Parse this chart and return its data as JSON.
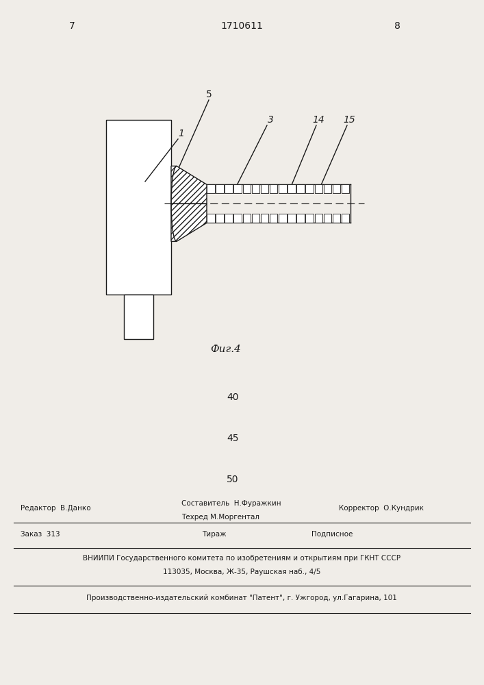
{
  "bg_color": "#f0ede8",
  "line_color": "#1a1a1a",
  "page_number_left": "7",
  "page_number_right": "8",
  "patent_number": "1710611",
  "fig_caption": "Фиг.4",
  "label_5": "5",
  "label_1": "1",
  "label_3": "3",
  "label_14": "14",
  "label_15": "15",
  "num_40": "40",
  "num_45": "45",
  "num_50": "50",
  "footer_editor": "Редактор  В.Данко",
  "footer_author": "Составитель  Н.Фуражкин",
  "footer_techred": "Техред М.Моргентал",
  "footer_corrector": "Корректор  О.Кундрик",
  "footer_order": "Заказ  313",
  "footer_tirazh": "Тираж",
  "footer_podpisnoe": "Подписное",
  "footer_vniipи": "ВНИИПИ Государственного комитета по изобретениям и открытиям при ГКНТ СССР",
  "footer_addr": "113035, Москва, Ж-35, Раушская наб., 4/5",
  "footer_patent": "Производственно-издательский комбинат \"Патент\", г. Ужгород, ул.Гагарина, 101"
}
